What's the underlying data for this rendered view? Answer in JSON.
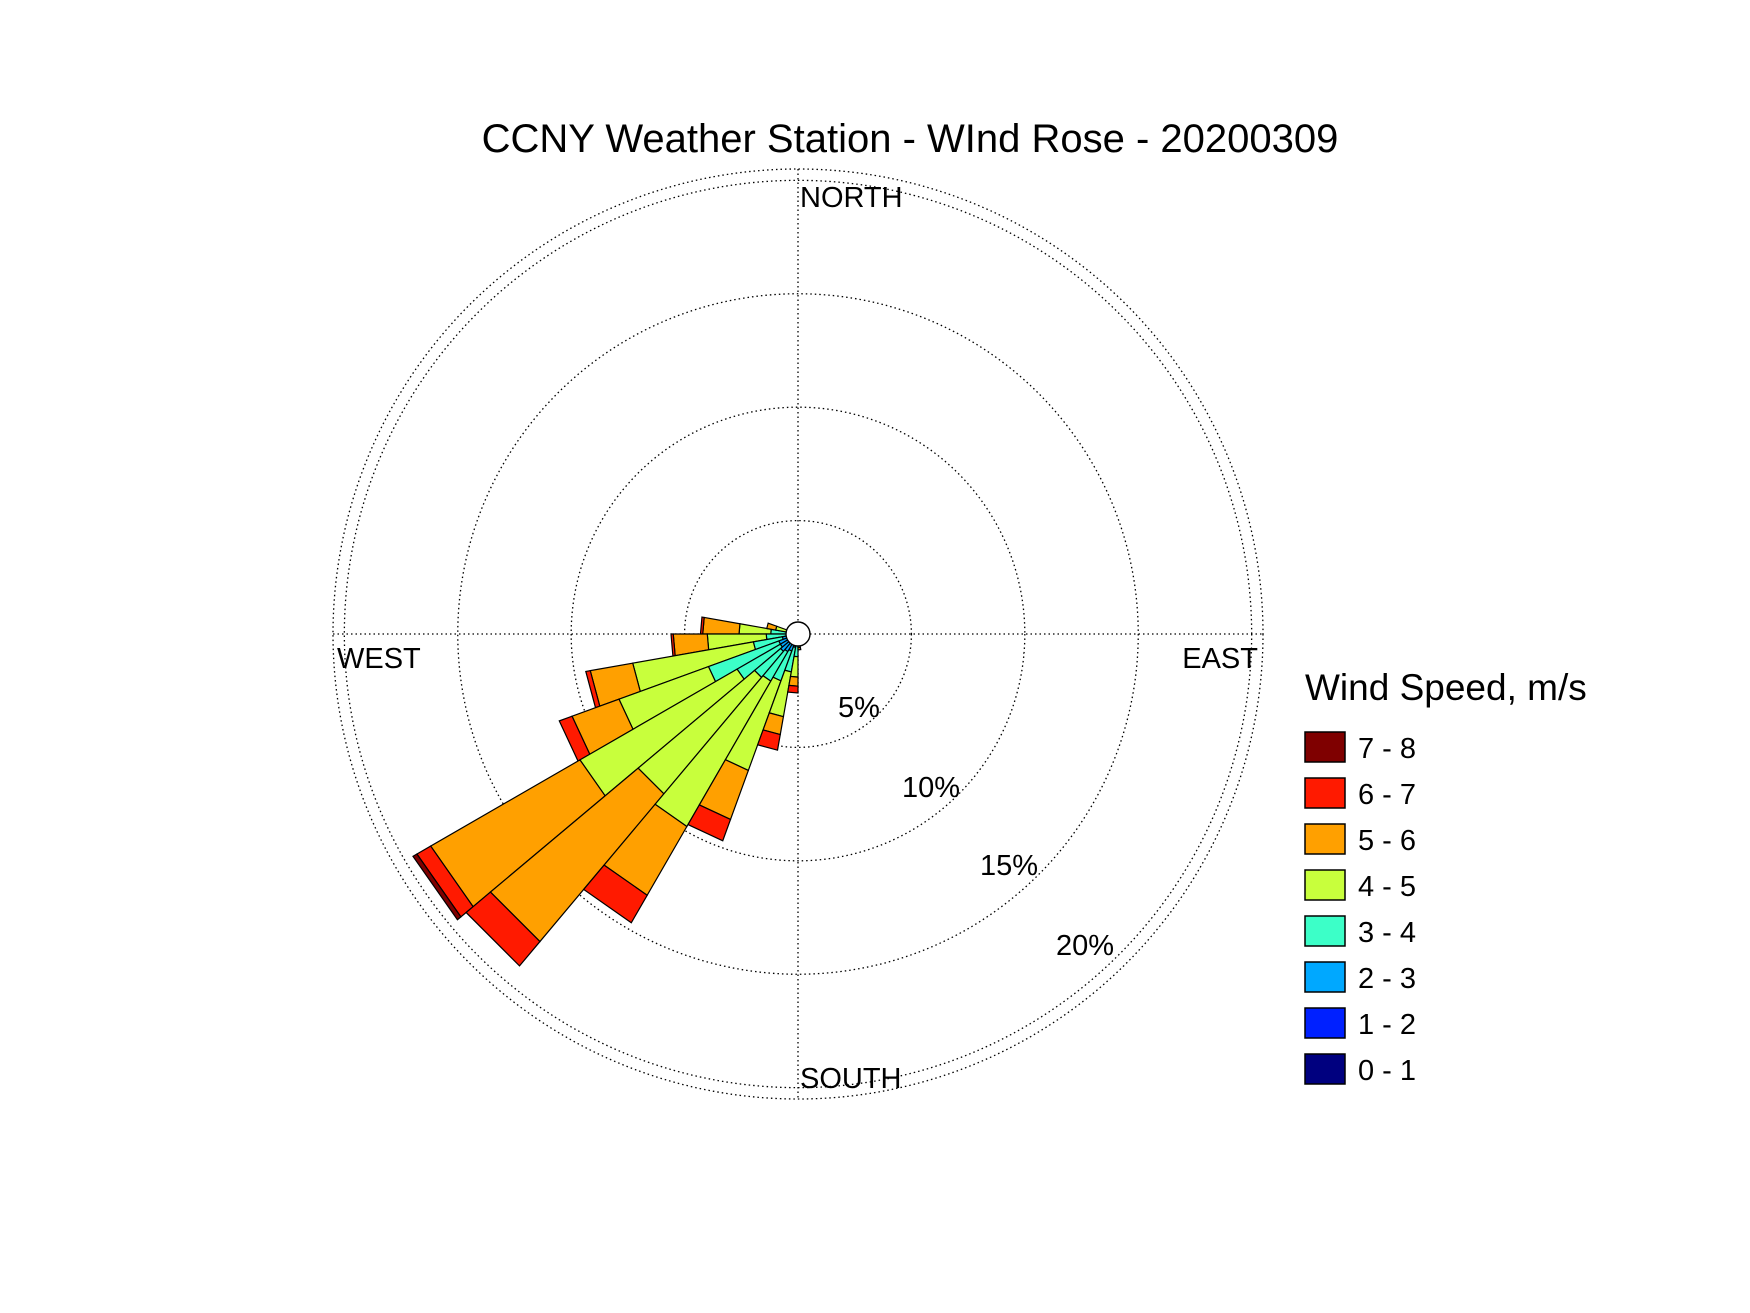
{
  "chart_data": {
    "type": "wind-rose",
    "title": "CCNY Weather Station - WInd Rose - 20200309",
    "directions": [
      "NORTH",
      "EAST",
      "SOUTH",
      "WEST"
    ],
    "ring_ticks": [
      5,
      10,
      15,
      20
    ],
    "ring_labels": [
      "5%",
      "10%",
      "15%",
      "20%"
    ],
    "r_max": 20.5,
    "grid": true,
    "legend": {
      "title": "Wind Speed, m/s",
      "position": "right",
      "bins": [
        {
          "label": "7 - 8",
          "color": "#7f0000"
        },
        {
          "label": "6 - 7",
          "color": "#ff1a00"
        },
        {
          "label": "5 - 6",
          "color": "#ffa000"
        },
        {
          "label": "4 - 5",
          "color": "#c8ff3c"
        },
        {
          "label": "3 - 4",
          "color": "#3cffc8"
        },
        {
          "label": "2 - 3",
          "color": "#00a8ff"
        },
        {
          "label": "1 - 2",
          "color": "#0020ff"
        },
        {
          "label": "0 - 1",
          "color": "#00007f"
        }
      ]
    },
    "speed_bins": [
      "0 - 1",
      "1 - 2",
      "2 - 3",
      "3 - 4",
      "4 - 5",
      "5 - 6",
      "6 - 7",
      "7 - 8"
    ],
    "series_colors": [
      "#00007f",
      "#0020ff",
      "#00a8ff",
      "#3cffc8",
      "#c8ff3c",
      "#ffa000",
      "#ff1a00",
      "#7f0000"
    ],
    "sector_width_deg": 10,
    "sectors": [
      {
        "direction_deg": 275,
        "cumulative": [
          0.1,
          0.2,
          0.4,
          1.2,
          2.6,
          4.2,
          4.3,
          4.3
        ]
      },
      {
        "direction_deg": 265,
        "cumulative": [
          0.1,
          0.3,
          0.5,
          1.4,
          4.0,
          5.5,
          5.6,
          5.6
        ]
      },
      {
        "direction_deg": 255,
        "cumulative": [
          0.1,
          0.3,
          0.7,
          2.0,
          7.4,
          9.3,
          9.5,
          9.5
        ]
      },
      {
        "direction_deg": 245,
        "cumulative": [
          0.1,
          0.3,
          0.9,
          4.2,
          8.4,
          10.6,
          11.2,
          11.2
        ]
      },
      {
        "direction_deg": 235,
        "cumulative": [
          0.1,
          0.3,
          0.9,
          3.1,
          11.1,
          18.7,
          19.4,
          19.6
        ]
      },
      {
        "direction_deg": 225,
        "cumulative": [
          0.1,
          0.3,
          1.0,
          2.5,
          9.2,
          17.7,
          19.1,
          19.1
        ]
      },
      {
        "direction_deg": 215,
        "cumulative": [
          0.1,
          0.3,
          0.9,
          2.4,
          9.8,
          13.3,
          14.7,
          14.7
        ]
      },
      {
        "direction_deg": 205,
        "cumulative": [
          0.1,
          0.3,
          0.8,
          2.2,
          6.4,
          8.7,
          9.7,
          9.7
        ]
      },
      {
        "direction_deg": 195,
        "cumulative": [
          0.1,
          0.3,
          0.6,
          1.7,
          3.7,
          4.5,
          5.2,
          5.2
        ]
      },
      {
        "direction_deg": 185,
        "cumulative": [
          0.1,
          0.2,
          0.4,
          1.0,
          1.9,
          2.3,
          2.6,
          2.6
        ]
      },
      {
        "direction_deg": 175,
        "cumulative": [
          0.1,
          0.1,
          0.2,
          0.4,
          0.6,
          0.7,
          0.7,
          0.7
        ]
      },
      {
        "direction_deg": 165,
        "cumulative": [
          0.1,
          0.1,
          0.2,
          0.3,
          0.4,
          0.5,
          0.5,
          0.5
        ]
      },
      {
        "direction_deg": 155,
        "cumulative": [
          0.1,
          0.1,
          0.1,
          0.2,
          0.3,
          0.4,
          0.4,
          0.4
        ]
      },
      {
        "direction_deg": 145,
        "cumulative": [
          0.1,
          0.1,
          0.1,
          0.2,
          0.3,
          0.3,
          0.3,
          0.3
        ]
      },
      {
        "direction_deg": 135,
        "cumulative": [
          0.1,
          0.1,
          0.1,
          0.2,
          0.2,
          0.3,
          0.3,
          0.3
        ]
      },
      {
        "direction_deg": 125,
        "cumulative": [
          0.1,
          0.1,
          0.1,
          0.2,
          0.2,
          0.2,
          0.2,
          0.2
        ]
      },
      {
        "direction_deg": 115,
        "cumulative": [
          0.1,
          0.1,
          0.1,
          0.1,
          0.2,
          0.2,
          0.2,
          0.2
        ]
      },
      {
        "direction_deg": 105,
        "cumulative": [
          0.1,
          0.1,
          0.1,
          0.1,
          0.2,
          0.2,
          0.2,
          0.2
        ]
      },
      {
        "direction_deg": 95,
        "cumulative": [
          0.1,
          0.1,
          0.1,
          0.1,
          0.1,
          0.2,
          0.2,
          0.2
        ]
      },
      {
        "direction_deg": 85,
        "cumulative": [
          0.1,
          0.1,
          0.1,
          0.1,
          0.1,
          0.2,
          0.2,
          0.2
        ]
      },
      {
        "direction_deg": 75,
        "cumulative": [
          0.1,
          0.1,
          0.1,
          0.1,
          0.1,
          0.1,
          0.1,
          0.1
        ]
      },
      {
        "direction_deg": 65,
        "cumulative": [
          0.1,
          0.1,
          0.1,
          0.1,
          0.1,
          0.1,
          0.1,
          0.1
        ]
      },
      {
        "direction_deg": 55,
        "cumulative": [
          0.1,
          0.1,
          0.1,
          0.1,
          0.1,
          0.1,
          0.1,
          0.1
        ]
      },
      {
        "direction_deg": 45,
        "cumulative": [
          0.1,
          0.1,
          0.1,
          0.1,
          0.1,
          0.1,
          0.1,
          0.1
        ]
      },
      {
        "direction_deg": 35,
        "cumulative": [
          0.1,
          0.1,
          0.1,
          0.1,
          0.1,
          0.1,
          0.1,
          0.1
        ]
      },
      {
        "direction_deg": 25,
        "cumulative": [
          0.1,
          0.1,
          0.1,
          0.1,
          0.1,
          0.1,
          0.1,
          0.1
        ]
      },
      {
        "direction_deg": 15,
        "cumulative": [
          0.1,
          0.1,
          0.1,
          0.1,
          0.1,
          0.1,
          0.1,
          0.1
        ]
      },
      {
        "direction_deg": 5,
        "cumulative": [
          0.1,
          0.1,
          0.1,
          0.1,
          0.1,
          0.1,
          0.1,
          0.1
        ]
      },
      {
        "direction_deg": 355,
        "cumulative": [
          0.1,
          0.1,
          0.1,
          0.1,
          0.1,
          0.1,
          0.1,
          0.1
        ]
      },
      {
        "direction_deg": 345,
        "cumulative": [
          0.1,
          0.1,
          0.1,
          0.1,
          0.1,
          0.1,
          0.1,
          0.1
        ]
      },
      {
        "direction_deg": 335,
        "cumulative": [
          0.1,
          0.1,
          0.1,
          0.1,
          0.1,
          0.1,
          0.1,
          0.1
        ]
      },
      {
        "direction_deg": 325,
        "cumulative": [
          0.1,
          0.1,
          0.1,
          0.1,
          0.1,
          0.1,
          0.1,
          0.1
        ]
      },
      {
        "direction_deg": 315,
        "cumulative": [
          0.1,
          0.1,
          0.1,
          0.1,
          0.2,
          0.2,
          0.2,
          0.2
        ]
      },
      {
        "direction_deg": 305,
        "cumulative": [
          0.1,
          0.1,
          0.1,
          0.2,
          0.2,
          0.3,
          0.3,
          0.3
        ]
      },
      {
        "direction_deg": 295,
        "cumulative": [
          0.1,
          0.1,
          0.2,
          0.3,
          0.4,
          0.5,
          0.5,
          0.5
        ]
      },
      {
        "direction_deg": 285,
        "cumulative": [
          0.1,
          0.1,
          0.2,
          0.5,
          1.0,
          1.4,
          1.4,
          1.4
        ]
      }
    ]
  }
}
